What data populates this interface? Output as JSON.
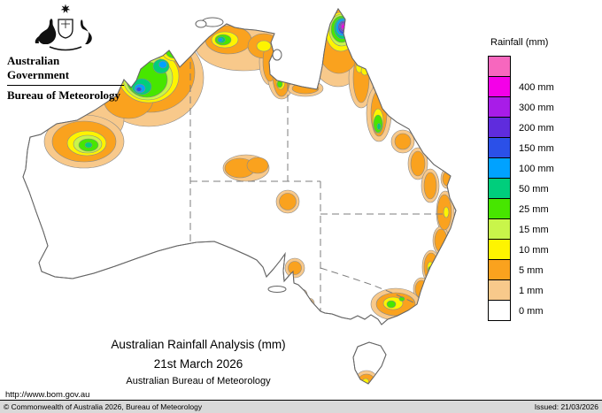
{
  "header": {
    "government_label": "Australian Government",
    "bureau_label": "Bureau of Meteorology"
  },
  "legend": {
    "title": "Rainfall (mm)",
    "cells": [
      {
        "level": "mmTop",
        "label": ""
      },
      {
        "level": "mm400",
        "label": "400 mm"
      },
      {
        "level": "mm300",
        "label": "300 mm"
      },
      {
        "level": "mm200",
        "label": "200 mm"
      },
      {
        "level": "mm150",
        "label": "150 mm"
      },
      {
        "level": "mm100",
        "label": "100 mm"
      },
      {
        "level": "mm50",
        "label": "50 mm"
      },
      {
        "level": "mm25",
        "label": "25 mm"
      },
      {
        "level": "mm15",
        "label": "15 mm"
      },
      {
        "level": "mm10",
        "label": "10 mm"
      },
      {
        "level": "mm5",
        "label": "5 mm"
      },
      {
        "level": "mm1",
        "label": "1 mm"
      },
      {
        "level": "mm0",
        "label": "0 mm"
      }
    ]
  },
  "palette": {
    "mmTop": "#F767BE",
    "mm400": "#F400E8",
    "mm300": "#A81CE8",
    "mm200": "#5F2CDD",
    "mm150": "#2B50E8",
    "mm100": "#00A2FF",
    "mm50": "#00CE7C",
    "mm25": "#47E600",
    "mm15": "#C9F54A",
    "mm10": "#FEF400",
    "mm5": "#FAA21E",
    "mm1": "#F8C98B",
    "mm0": "#FFFFFF"
  },
  "map": {
    "title": "Australian Rainfall Analysis (mm)",
    "date": "21st March 2026",
    "org": "Australian Bureau of Meteorology"
  },
  "links": {
    "url": "http://www.bom.gov.au"
  },
  "footer": {
    "copyright": "© Commonwealth of Australia 2026, Bureau of Meteorology",
    "issued": "Issued: 21/03/2026"
  }
}
